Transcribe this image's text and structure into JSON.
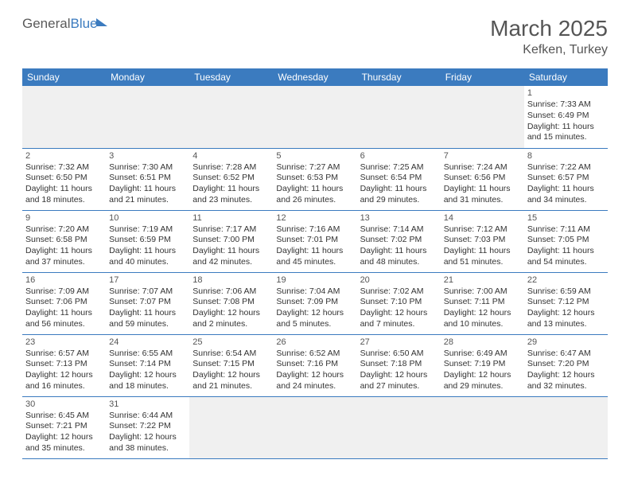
{
  "logo": {
    "part1": "General",
    "part2": "Blue"
  },
  "month_title": "March 2025",
  "location": "Kefken, Turkey",
  "weekdays": [
    "Sunday",
    "Monday",
    "Tuesday",
    "Wednesday",
    "Thursday",
    "Friday",
    "Saturday"
  ],
  "colors": {
    "header_bg": "#3b7bbf",
    "header_fg": "#ffffff",
    "border": "#3b7bbf",
    "blank_bg": "#f0f0f0"
  },
  "weeks": [
    [
      {
        "blank": true
      },
      {
        "blank": true
      },
      {
        "blank": true
      },
      {
        "blank": true
      },
      {
        "blank": true
      },
      {
        "blank": true
      },
      {
        "day": "1",
        "sunrise": "Sunrise: 7:33 AM",
        "sunset": "Sunset: 6:49 PM",
        "daylight": "Daylight: 11 hours and 15 minutes."
      }
    ],
    [
      {
        "day": "2",
        "sunrise": "Sunrise: 7:32 AM",
        "sunset": "Sunset: 6:50 PM",
        "daylight": "Daylight: 11 hours and 18 minutes."
      },
      {
        "day": "3",
        "sunrise": "Sunrise: 7:30 AM",
        "sunset": "Sunset: 6:51 PM",
        "daylight": "Daylight: 11 hours and 21 minutes."
      },
      {
        "day": "4",
        "sunrise": "Sunrise: 7:28 AM",
        "sunset": "Sunset: 6:52 PM",
        "daylight": "Daylight: 11 hours and 23 minutes."
      },
      {
        "day": "5",
        "sunrise": "Sunrise: 7:27 AM",
        "sunset": "Sunset: 6:53 PM",
        "daylight": "Daylight: 11 hours and 26 minutes."
      },
      {
        "day": "6",
        "sunrise": "Sunrise: 7:25 AM",
        "sunset": "Sunset: 6:54 PM",
        "daylight": "Daylight: 11 hours and 29 minutes."
      },
      {
        "day": "7",
        "sunrise": "Sunrise: 7:24 AM",
        "sunset": "Sunset: 6:56 PM",
        "daylight": "Daylight: 11 hours and 31 minutes."
      },
      {
        "day": "8",
        "sunrise": "Sunrise: 7:22 AM",
        "sunset": "Sunset: 6:57 PM",
        "daylight": "Daylight: 11 hours and 34 minutes."
      }
    ],
    [
      {
        "day": "9",
        "sunrise": "Sunrise: 7:20 AM",
        "sunset": "Sunset: 6:58 PM",
        "daylight": "Daylight: 11 hours and 37 minutes."
      },
      {
        "day": "10",
        "sunrise": "Sunrise: 7:19 AM",
        "sunset": "Sunset: 6:59 PM",
        "daylight": "Daylight: 11 hours and 40 minutes."
      },
      {
        "day": "11",
        "sunrise": "Sunrise: 7:17 AM",
        "sunset": "Sunset: 7:00 PM",
        "daylight": "Daylight: 11 hours and 42 minutes."
      },
      {
        "day": "12",
        "sunrise": "Sunrise: 7:16 AM",
        "sunset": "Sunset: 7:01 PM",
        "daylight": "Daylight: 11 hours and 45 minutes."
      },
      {
        "day": "13",
        "sunrise": "Sunrise: 7:14 AM",
        "sunset": "Sunset: 7:02 PM",
        "daylight": "Daylight: 11 hours and 48 minutes."
      },
      {
        "day": "14",
        "sunrise": "Sunrise: 7:12 AM",
        "sunset": "Sunset: 7:03 PM",
        "daylight": "Daylight: 11 hours and 51 minutes."
      },
      {
        "day": "15",
        "sunrise": "Sunrise: 7:11 AM",
        "sunset": "Sunset: 7:05 PM",
        "daylight": "Daylight: 11 hours and 54 minutes."
      }
    ],
    [
      {
        "day": "16",
        "sunrise": "Sunrise: 7:09 AM",
        "sunset": "Sunset: 7:06 PM",
        "daylight": "Daylight: 11 hours and 56 minutes."
      },
      {
        "day": "17",
        "sunrise": "Sunrise: 7:07 AM",
        "sunset": "Sunset: 7:07 PM",
        "daylight": "Daylight: 11 hours and 59 minutes."
      },
      {
        "day": "18",
        "sunrise": "Sunrise: 7:06 AM",
        "sunset": "Sunset: 7:08 PM",
        "daylight": "Daylight: 12 hours and 2 minutes."
      },
      {
        "day": "19",
        "sunrise": "Sunrise: 7:04 AM",
        "sunset": "Sunset: 7:09 PM",
        "daylight": "Daylight: 12 hours and 5 minutes."
      },
      {
        "day": "20",
        "sunrise": "Sunrise: 7:02 AM",
        "sunset": "Sunset: 7:10 PM",
        "daylight": "Daylight: 12 hours and 7 minutes."
      },
      {
        "day": "21",
        "sunrise": "Sunrise: 7:00 AM",
        "sunset": "Sunset: 7:11 PM",
        "daylight": "Daylight: 12 hours and 10 minutes."
      },
      {
        "day": "22",
        "sunrise": "Sunrise: 6:59 AM",
        "sunset": "Sunset: 7:12 PM",
        "daylight": "Daylight: 12 hours and 13 minutes."
      }
    ],
    [
      {
        "day": "23",
        "sunrise": "Sunrise: 6:57 AM",
        "sunset": "Sunset: 7:13 PM",
        "daylight": "Daylight: 12 hours and 16 minutes."
      },
      {
        "day": "24",
        "sunrise": "Sunrise: 6:55 AM",
        "sunset": "Sunset: 7:14 PM",
        "daylight": "Daylight: 12 hours and 18 minutes."
      },
      {
        "day": "25",
        "sunrise": "Sunrise: 6:54 AM",
        "sunset": "Sunset: 7:15 PM",
        "daylight": "Daylight: 12 hours and 21 minutes."
      },
      {
        "day": "26",
        "sunrise": "Sunrise: 6:52 AM",
        "sunset": "Sunset: 7:16 PM",
        "daylight": "Daylight: 12 hours and 24 minutes."
      },
      {
        "day": "27",
        "sunrise": "Sunrise: 6:50 AM",
        "sunset": "Sunset: 7:18 PM",
        "daylight": "Daylight: 12 hours and 27 minutes."
      },
      {
        "day": "28",
        "sunrise": "Sunrise: 6:49 AM",
        "sunset": "Sunset: 7:19 PM",
        "daylight": "Daylight: 12 hours and 29 minutes."
      },
      {
        "day": "29",
        "sunrise": "Sunrise: 6:47 AM",
        "sunset": "Sunset: 7:20 PM",
        "daylight": "Daylight: 12 hours and 32 minutes."
      }
    ],
    [
      {
        "day": "30",
        "sunrise": "Sunrise: 6:45 AM",
        "sunset": "Sunset: 7:21 PM",
        "daylight": "Daylight: 12 hours and 35 minutes."
      },
      {
        "day": "31",
        "sunrise": "Sunrise: 6:44 AM",
        "sunset": "Sunset: 7:22 PM",
        "daylight": "Daylight: 12 hours and 38 minutes."
      },
      {
        "blank": true
      },
      {
        "blank": true
      },
      {
        "blank": true
      },
      {
        "blank": true
      },
      {
        "blank": true
      }
    ]
  ]
}
